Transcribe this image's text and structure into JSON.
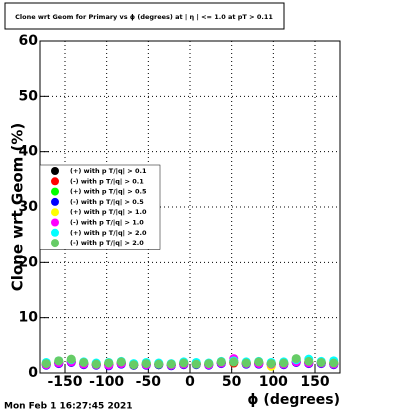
{
  "chart_data": {
    "type": "scatter",
    "title": "Clone wrt Geom for Primary vs ϕ (degrees) at | η | <= 1.0 at pT > 0.11",
    "x_label": "ϕ (degrees)",
    "y_label": "Clone wrt Geom (%)",
    "footer": "Mon Feb  1 16:27:45 2021",
    "xlim": [
      -180,
      180
    ],
    "xticks": [
      -150,
      -100,
      -50,
      0,
      50,
      100,
      150
    ],
    "ylim": [
      0,
      60
    ],
    "yticks": [
      0,
      10,
      20,
      30,
      40,
      50,
      60
    ],
    "grid": true,
    "x": [
      -172.5,
      -157.5,
      -142.5,
      -127.5,
      -112.5,
      -97.5,
      -82.5,
      -67.5,
      -52.5,
      -37.5,
      -22.5,
      -7.5,
      7.5,
      22.5,
      37.5,
      52.5,
      67.5,
      82.5,
      97.5,
      112.5,
      127.5,
      142.5,
      157.5,
      172.5
    ],
    "series": [
      {
        "name": "(+) with p T/|q| > 0.1",
        "color": "#000000",
        "values": [
          1.6,
          1.8,
          2.0,
          1.7,
          1.5,
          1.6,
          1.8,
          1.4,
          1.6,
          1.5,
          1.4,
          1.7,
          1.6,
          1.5,
          1.8,
          1.9,
          1.7,
          1.8,
          1.6,
          1.7,
          2.0,
          1.9,
          1.8,
          1.7
        ]
      },
      {
        "name": "(-) with p T/|q| > 0.1",
        "color": "#ff0000",
        "values": [
          1.5,
          1.9,
          2.1,
          1.6,
          1.6,
          1.5,
          1.7,
          1.5,
          1.5,
          1.6,
          1.5,
          1.6,
          1.7,
          1.6,
          1.9,
          1.8,
          1.8,
          1.7,
          1.7,
          1.6,
          2.1,
          1.8,
          1.9,
          1.6
        ]
      },
      {
        "name": "(+) with p T/|q| > 0.5",
        "color": "#00ff00",
        "values": [
          1.7,
          2.0,
          2.2,
          1.8,
          1.6,
          1.7,
          1.9,
          1.5,
          1.7,
          1.6,
          1.5,
          1.8,
          1.7,
          1.6,
          1.9,
          2.0,
          1.8,
          1.9,
          1.7,
          1.8,
          2.2,
          2.0,
          1.9,
          1.8
        ]
      },
      {
        "name": "(-) with p T/|q| > 0.5",
        "color": "#0000ff",
        "values": [
          1.4,
          1.7,
          1.9,
          1.5,
          1.4,
          1.3,
          1.6,
          1.4,
          1.4,
          1.5,
          1.3,
          1.5,
          1.5,
          1.4,
          1.7,
          2.2,
          1.6,
          1.6,
          1.5,
          1.5,
          1.9,
          1.7,
          1.7,
          1.5
        ]
      },
      {
        "name": "(+) with p T/|q| > 1.0",
        "color": "#ffff00",
        "values": [
          1.8,
          2.1,
          2.3,
          1.9,
          1.7,
          1.8,
          2.0,
          1.6,
          1.8,
          1.7,
          1.6,
          1.9,
          1.8,
          1.7,
          2.0,
          2.1,
          1.9,
          2.0,
          1.2,
          1.9,
          2.3,
          2.1,
          2.0,
          1.9
        ]
      },
      {
        "name": "(-) with p T/|q| > 1.0",
        "color": "#ff00ff",
        "values": [
          1.5,
          1.8,
          2.0,
          1.6,
          1.5,
          1.4,
          1.7,
          1.5,
          1.5,
          1.6,
          1.4,
          1.6,
          1.6,
          1.5,
          1.8,
          2.6,
          1.7,
          1.7,
          1.6,
          1.6,
          2.0,
          1.8,
          1.8,
          1.6
        ]
      },
      {
        "name": "(+) with p T/|q| > 2.0",
        "color": "#00ffff",
        "values": [
          1.9,
          2.2,
          2.4,
          2.0,
          1.8,
          1.9,
          2.1,
          1.7,
          1.9,
          1.8,
          1.7,
          2.0,
          1.9,
          1.8,
          2.1,
          2.2,
          2.0,
          2.1,
          1.9,
          2.0,
          2.4,
          2.5,
          2.1,
          2.2
        ]
      },
      {
        "name": "(-) with p T/|q| > 2.0",
        "color": "#66cc66",
        "values": [
          1.7,
          2.2,
          2.5,
          1.9,
          1.6,
          1.8,
          2.0,
          1.5,
          1.7,
          1.6,
          1.6,
          1.8,
          1.6,
          1.7,
          2.0,
          2.0,
          1.8,
          2.0,
          1.7,
          1.8,
          2.6,
          2.1,
          1.9,
          1.8
        ]
      }
    ]
  }
}
